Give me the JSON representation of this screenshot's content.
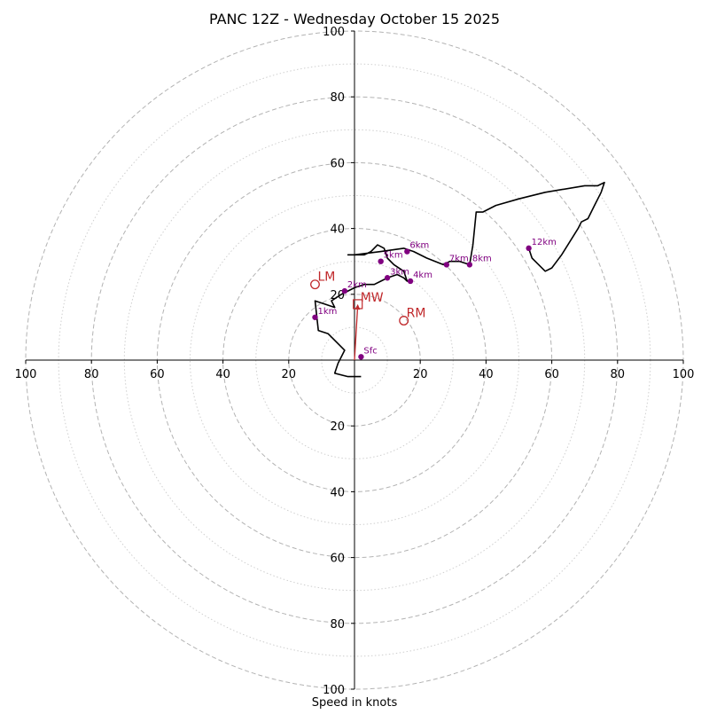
{
  "chart_data": {
    "type": "hodograph",
    "title": "PANC 12Z - Wednesday October 15 2025",
    "xlabel": "Speed in knots",
    "range": [
      -100,
      100
    ],
    "rings_major": [
      20,
      40,
      60,
      80,
      100
    ],
    "rings_minor": [
      10,
      30,
      50,
      70,
      90
    ],
    "x_ticks": [
      -100,
      -80,
      -60,
      -40,
      -20,
      20,
      40,
      60,
      80,
      100
    ],
    "y_ticks": [
      -100,
      -80,
      -60,
      -40,
      -20,
      20,
      40,
      60,
      80,
      100
    ],
    "trace": [
      [
        2,
        -5
      ],
      [
        -2,
        -5
      ],
      [
        -6,
        -4
      ],
      [
        -5,
        -1
      ],
      [
        -3,
        3
      ],
      [
        -8,
        8
      ],
      [
        -11,
        9
      ],
      [
        -12,
        18
      ],
      [
        -9,
        17
      ],
      [
        -6,
        16
      ],
      [
        -7,
        18
      ],
      [
        -4,
        20
      ],
      [
        -2,
        21
      ],
      [
        0,
        22
      ],
      [
        3,
        23
      ],
      [
        6,
        23
      ],
      [
        8,
        24
      ],
      [
        10,
        25
      ],
      [
        13,
        26
      ],
      [
        15,
        25
      ],
      [
        16,
        24
      ],
      [
        15,
        27
      ],
      [
        12,
        29
      ],
      [
        10,
        31
      ],
      [
        9,
        34
      ],
      [
        7,
        35
      ],
      [
        5,
        33
      ],
      [
        3,
        32
      ],
      [
        -2,
        32
      ],
      [
        0,
        32
      ],
      [
        8,
        33
      ],
      [
        15,
        34
      ],
      [
        18,
        33
      ],
      [
        22,
        31
      ],
      [
        27,
        29
      ],
      [
        29,
        30
      ],
      [
        32,
        30
      ],
      [
        35,
        29
      ],
      [
        36,
        35
      ],
      [
        37,
        45
      ],
      [
        39,
        45
      ],
      [
        43,
        47
      ],
      [
        50,
        49
      ],
      [
        58,
        51
      ],
      [
        70,
        53
      ],
      [
        74,
        53
      ],
      [
        76,
        54
      ],
      [
        75,
        51
      ],
      [
        73,
        47
      ],
      [
        71,
        43
      ],
      [
        69,
        42
      ],
      [
        68,
        40
      ],
      [
        63,
        32
      ],
      [
        60,
        28
      ],
      [
        58,
        27
      ],
      [
        55,
        30
      ],
      [
        54,
        31
      ],
      [
        53,
        34
      ]
    ],
    "height_markers": [
      {
        "label": "Sfc",
        "u": 2,
        "v": 1
      },
      {
        "label": "1km",
        "u": -12,
        "v": 13
      },
      {
        "label": "2km",
        "u": -3,
        "v": 21
      },
      {
        "label": "3km",
        "u": 10,
        "v": 25
      },
      {
        "label": "4km",
        "u": 17,
        "v": 24
      },
      {
        "label": "5km",
        "u": 8,
        "v": 30
      },
      {
        "label": "6km",
        "u": 16,
        "v": 33
      },
      {
        "label": "7km",
        "u": 28,
        "v": 29
      },
      {
        "label": "8km",
        "u": 35,
        "v": 29
      },
      {
        "label": "12km",
        "u": 53,
        "v": 34
      }
    ],
    "storm_motion": {
      "LM": {
        "label": "LM",
        "u": -12,
        "v": 23
      },
      "RM": {
        "label": "RM",
        "u": 15,
        "v": 12
      },
      "MW": {
        "label": "MW",
        "u": 1,
        "v": 17
      },
      "vector_start": {
        "u": 0,
        "v": 0
      }
    }
  },
  "colors": {
    "trace": "#000000",
    "marker": "#800080",
    "motion": "#c0282b",
    "ring_major": "#b3b3b3",
    "ring_minor": "#cfcfcf",
    "axis": "#000000"
  }
}
